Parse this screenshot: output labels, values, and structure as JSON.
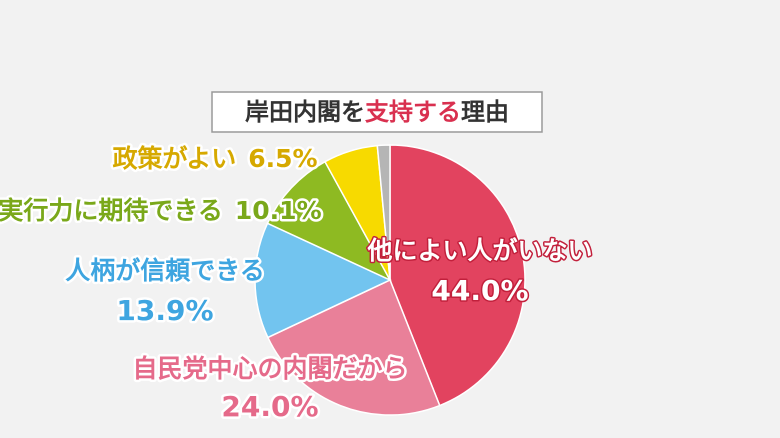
{
  "chart_data": {
    "type": "pie",
    "title": [
      {
        "text": "岸田内閣を"
      },
      {
        "text": "支持する",
        "color": "#d9304f"
      },
      {
        "text": "理由"
      }
    ],
    "categories": [
      "他によい人がいない",
      "自民党中心の内閣だから",
      "人柄が信頼できる",
      "実行力に期待できる",
      "政策がよい",
      null
    ],
    "values": [
      44.0,
      24.0,
      13.9,
      10.1,
      6.5,
      1.5
    ],
    "value_labels": [
      "44.0%",
      "24.0%",
      "13.9%",
      "10.1%",
      "6.5%",
      null
    ],
    "colors": [
      "#e2435f",
      "#e98099",
      "#72c4ef",
      "#8eba22",
      "#f7da00",
      "#b5b5b5"
    ],
    "label_colors": [
      "#ffffff",
      "#e56a8a",
      "#3ea5e0",
      "#7aa81a",
      "#d6a900",
      null
    ]
  }
}
